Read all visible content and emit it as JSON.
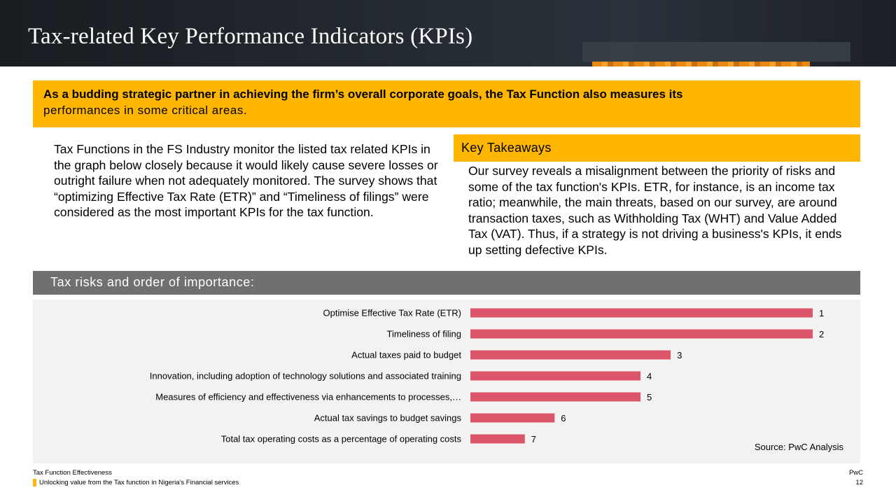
{
  "header": {
    "title": "Tax-related Key Performance Indicators (KPIs)"
  },
  "banner": {
    "line1": "As a budding strategic partner in achieving the firm’s overall corporate goals, the Tax Function also measures its",
    "line2": "performances in some critical areas."
  },
  "intro": {
    "text": "Tax Functions in the  FS Industry monitor the listed tax related KPIs in the graph below closely because it would likely cause severe losses or outright failure when not adequately monitored. The survey shows that “optimizing Effective Tax Rate (ETR)”  and “Timeliness of filings” were considered as the most important KPIs for the tax function."
  },
  "takeaways": {
    "heading": "Key Takeaways",
    "text": "Our survey reveals a misalignment between the priority of risks and some of the tax function's KPIs. ETR, for instance, is an income tax ratio; meanwhile, the main threats, based on our survey, are around transaction taxes, such as Withholding Tax (WHT) and Value Added Tax (VAT). Thus, if a strategy is not driving a business's KPIs, it ends up setting defective KPIs."
  },
  "chart_section": {
    "heading": "Tax risks and order of importance:",
    "source": "Source: PwC Analysis"
  },
  "chart_data": {
    "type": "bar",
    "orientation": "horizontal",
    "categories": [
      "Optimise Effective Tax Rate (ETR)",
      "Timeliness of filing",
      "Actual taxes paid to budget",
      "Innovation, including adoption of technology solutions and associated training",
      "Measures of efficiency and effectiveness via enhancements to processes,…",
      "Actual tax savings to budget savings",
      "Total tax operating costs as a percentage of operating costs"
    ],
    "values": [
      1,
      2,
      3,
      4,
      5,
      6,
      7
    ],
    "relative_bar_length": [
      1.0,
      1.0,
      0.585,
      0.497,
      0.497,
      0.246,
      0.159
    ],
    "bar_color": "#dc5568",
    "grid": false,
    "legend": "none",
    "xlabel": "",
    "ylabel": "",
    "title": ""
  },
  "footer": {
    "left_line1": "Tax Function Effectiveness",
    "left_line2": "Unlocking value from the Tax function in Nigeria’s Financial services",
    "right_line1": "PwC",
    "right_line2": "12"
  },
  "colors": {
    "accent": "#ffb600",
    "header_bg": "#232830",
    "chart_header_bg": "#707070",
    "chart_panel_bg": "#f2f2f2",
    "bar": "#dc5568"
  }
}
